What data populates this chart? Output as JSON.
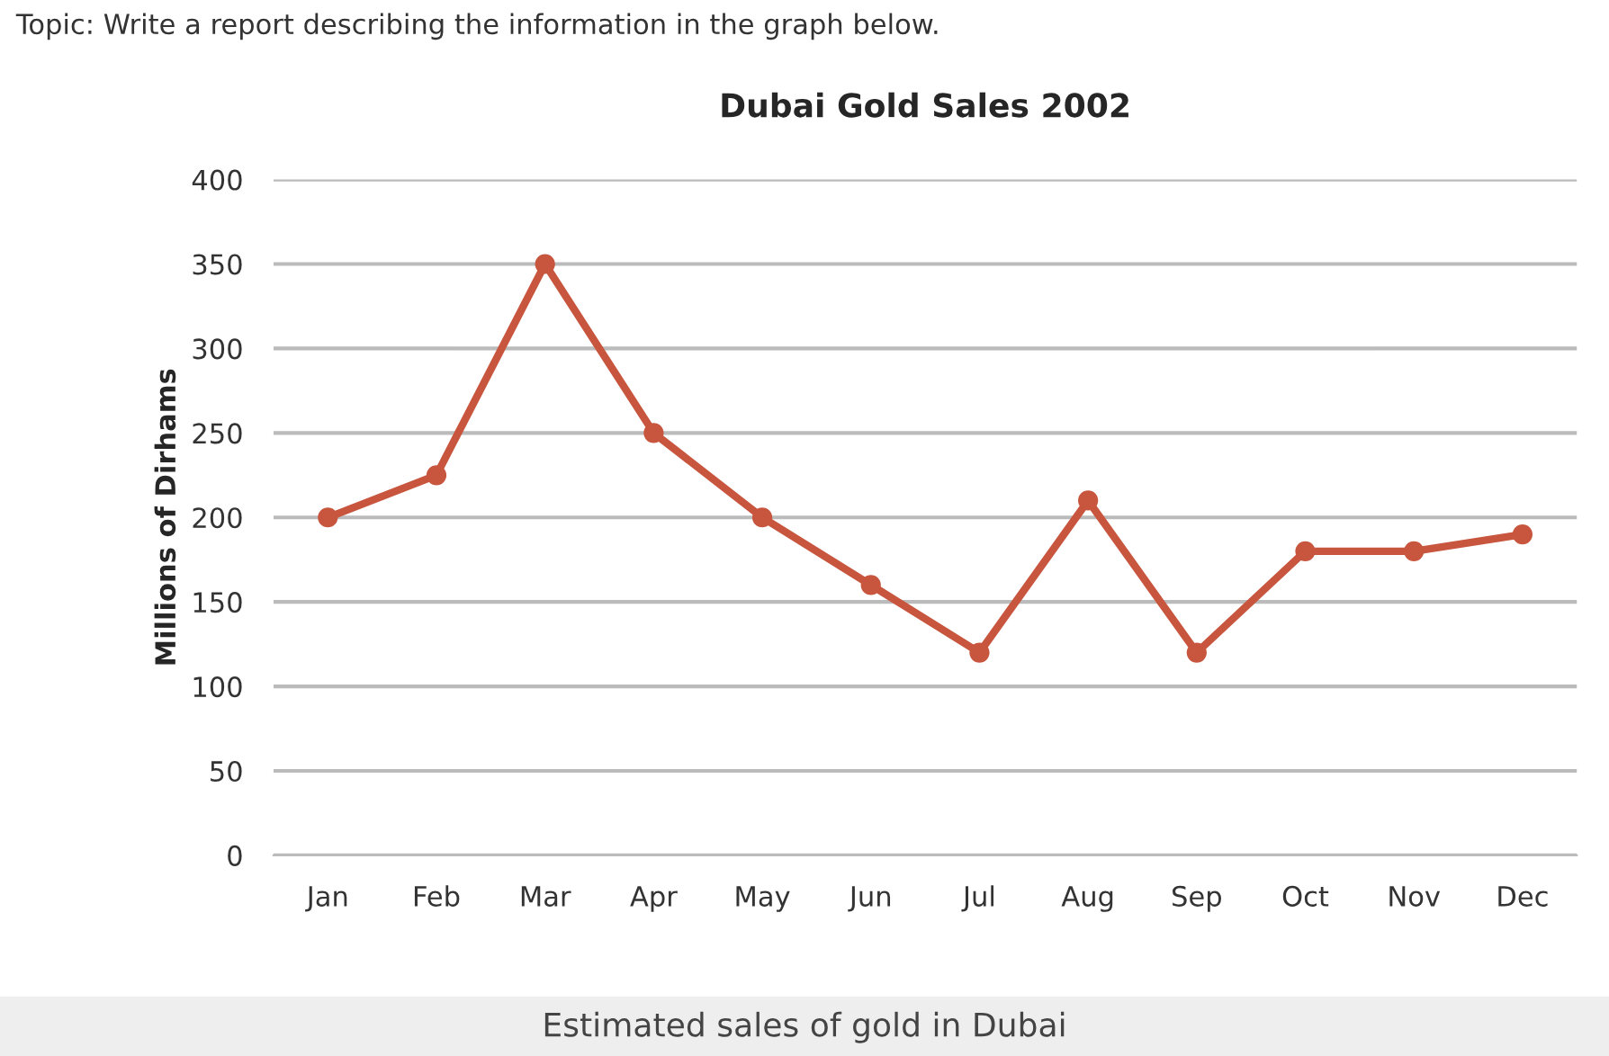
{
  "chart_data": {
    "type": "line",
    "title": "Dubai Gold Sales 2002",
    "ylabel": "Millions of Dirhams",
    "annotations": [
      "Topic: Write a report describing the information in the graph below.",
      "Estimated sales of gold in Dubai"
    ],
    "categories": [
      "Jan",
      "Feb",
      "Mar",
      "Apr",
      "May",
      "Jun",
      "Jul",
      "Aug",
      "Sep",
      "Oct",
      "Nov",
      "Dec"
    ],
    "series": [
      {
        "color": "#c8553d",
        "values": [
          200,
          225,
          350,
          250,
          200,
          160,
          120,
          210,
          120,
          180,
          180,
          190
        ]
      }
    ],
    "ylim": [
      0,
      400
    ],
    "yticks": [
      0,
      50,
      100,
      150,
      200,
      250,
      300,
      350,
      400
    ],
    "grid": "y",
    "legend": false,
    "marker": "circle",
    "line_style": "solid"
  }
}
